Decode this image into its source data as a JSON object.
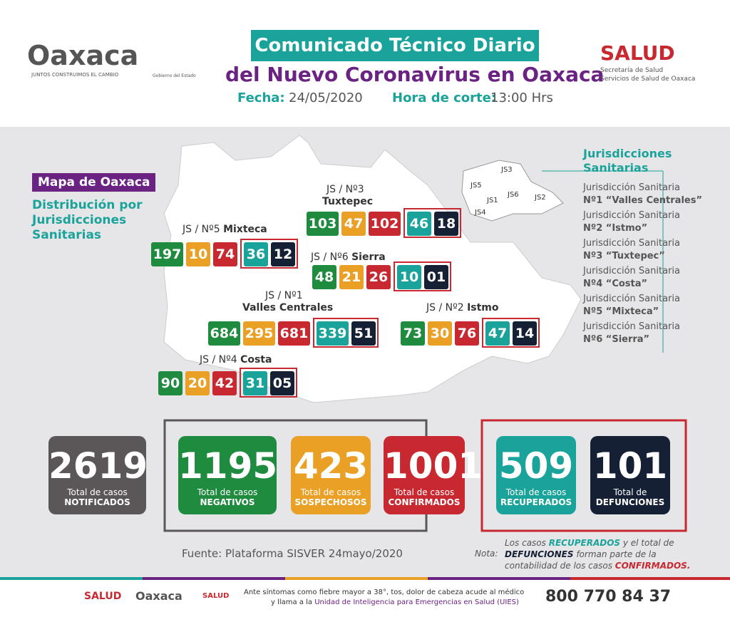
{
  "header": {
    "logo": "Oaxaca",
    "logo_tagline": "JUNTOS CONSTRUIMOS EL CAMBIO",
    "gobierno": "Gobierno del Estado",
    "title_line1": "Comunicado Técnico Diario",
    "title_line2": "del Nuevo Coronavirus en Oaxaca",
    "fecha_label": "Fecha:",
    "fecha": "24/05/2020",
    "hora_label": "Hora de corte:",
    "hora": "13:00 Hrs",
    "salud": "SALUD",
    "salud_sub1": "Secretaría de Salud",
    "salud_sub2": "Servicios de Salud de Oaxaca"
  },
  "map": {
    "badge": "Mapa de Oaxaca",
    "subtitle": [
      "Distribución por",
      "Jurisdicciones",
      "Sanitarias"
    ],
    "jurisdictions": [
      {
        "label": "JS / Nº3",
        "name": "Tuxtepec",
        "values": [
          "103",
          "47",
          "102",
          "46",
          "18"
        ]
      },
      {
        "label": "JS / Nº5",
        "name": "Mixteca",
        "values": [
          "197",
          "10",
          "74",
          "36",
          "12"
        ]
      },
      {
        "label": "JS / Nº6",
        "name": "Sierra",
        "values": [
          "48",
          "21",
          "26",
          "10",
          "01"
        ]
      },
      {
        "label": "JS / Nº1",
        "name": "Valles Centrales",
        "values": [
          "684",
          "295",
          "681",
          "339",
          "51"
        ]
      },
      {
        "label": "JS / Nº2",
        "name": "Istmo",
        "values": [
          "73",
          "30",
          "76",
          "47",
          "14"
        ]
      },
      {
        "label": "JS / Nº4",
        "name": "Costa",
        "values": [
          "90",
          "20",
          "42",
          "31",
          "05"
        ]
      }
    ]
  },
  "legend": {
    "title": [
      "Jurisdicciones",
      "Sanitarias"
    ],
    "mini_labels": [
      "JS3",
      "JS5",
      "JS1",
      "JS6",
      "JS2",
      "JS4"
    ],
    "items": [
      [
        "Jurisdicción Sanitaria",
        "Nº1 “Valles Centrales”"
      ],
      [
        "Jurisdicción Sanitaria",
        "Nº2 “Istmo”"
      ],
      [
        "Jurisdicción Sanitaria",
        "Nº3 “Tuxtepec”"
      ],
      [
        "Jurisdicción Sanitaria",
        "Nº4 “Costa”"
      ],
      [
        "Jurisdicción Sanitaria",
        "Nº5 “Mixteca”"
      ],
      [
        "Jurisdicción Sanitaria",
        "Nº6 “Sierra”"
      ]
    ]
  },
  "totals": [
    {
      "value": "2619",
      "label1": "Total de casos",
      "label2": "NOTIFICADOS"
    },
    {
      "value": "1195",
      "label1": "Total de casos",
      "label2": "NEGATIVOS"
    },
    {
      "value": "423",
      "label1": "Total de casos",
      "label2": "SOSPECHOSOS"
    },
    {
      "value": "1001",
      "label1": "Total de casos",
      "label2": "CONFIRMADOS"
    },
    {
      "value": "509",
      "label1": "Total de casos",
      "label2": "RECUPERADOS"
    },
    {
      "value": "101",
      "label1": "Total de",
      "label2": "DEFUNCIONES"
    }
  ],
  "source": "Fuente: Plataforma SISVER 24mayo/2020",
  "note": {
    "label": "Nota:",
    "parts": [
      "Los casos ",
      "RECUPERADOS",
      " y el total de",
      "DEFUNCIONES",
      " forman parte de la",
      "contabilidad de los casos ",
      "CONFIRMADOS."
    ]
  },
  "footer": {
    "salud": "SALUD",
    "oaxaca": "Oaxaca",
    "salud2": "SALUD",
    "line1": "Ante síntomas como fiebre mayor a 38°, tos, dolor de cabeza acude al médico",
    "line2_a": "y llama a la ",
    "line2_b": "Unidad de Inteligencia para Emergencias en Salud (UIES)",
    "phone": "800 770 84 37"
  }
}
